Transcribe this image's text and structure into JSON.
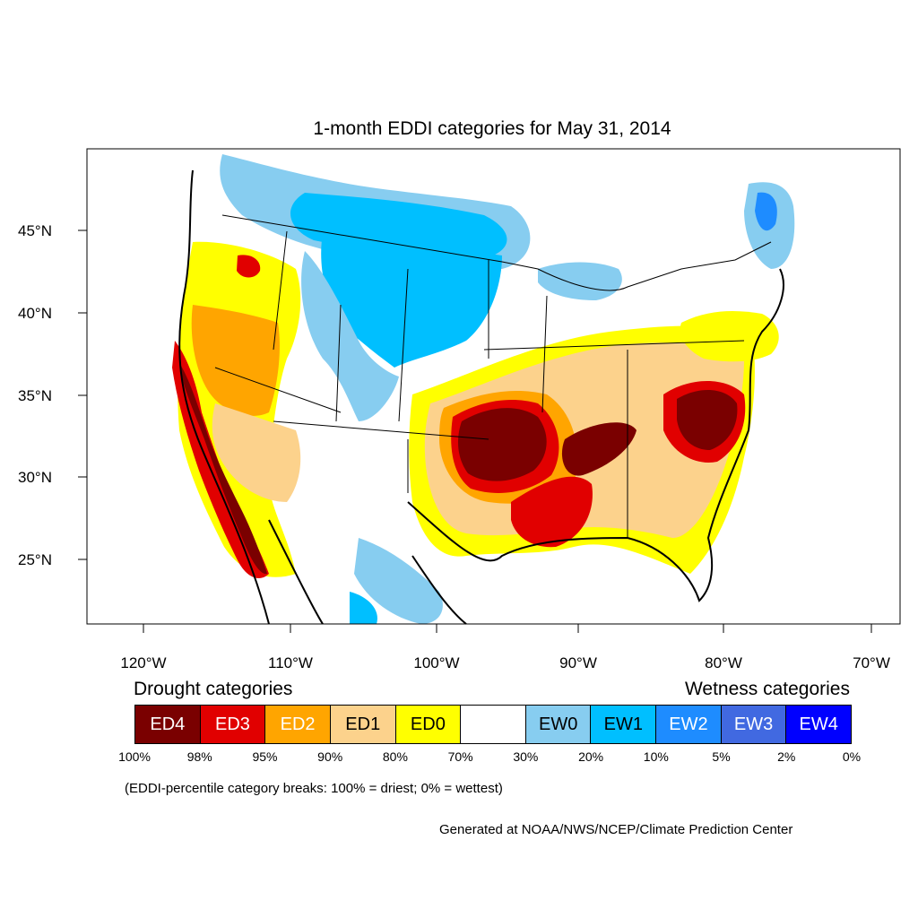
{
  "title": "1-month EDDI categories for May 31, 2014",
  "map": {
    "lat_labels": [
      "45°N",
      "40°N",
      "35°N",
      "30°N",
      "25°N"
    ],
    "lon_labels": [
      "120°W",
      "110°W",
      "100°W",
      "90°W",
      "80°W",
      "70°W"
    ]
  },
  "legend": {
    "drought_heading": "Drought categories",
    "wetness_heading": "Wetness categories",
    "categories": [
      {
        "label": "ED4",
        "color": "#7a0000",
        "text_color": "#ffffff"
      },
      {
        "label": "ED3",
        "color": "#e10000",
        "text_color": "#ffffff"
      },
      {
        "label": "ED2",
        "color": "#ffa500",
        "text_color": "#ffffff"
      },
      {
        "label": "ED1",
        "color": "#fcd28c",
        "text_color": "#000000"
      },
      {
        "label": "ED0",
        "color": "#ffff00",
        "text_color": "#000000"
      },
      {
        "label": "",
        "color": "#ffffff",
        "text_color": "#000000"
      },
      {
        "label": "EW0",
        "color": "#87cdf0",
        "text_color": "#000000"
      },
      {
        "label": "EW1",
        "color": "#00bfff",
        "text_color": "#000000"
      },
      {
        "label": "EW2",
        "color": "#1e8cff",
        "text_color": "#ffffff"
      },
      {
        "label": "EW3",
        "color": "#4169e1",
        "text_color": "#ffffff"
      },
      {
        "label": "EW4",
        "color": "#0000ff",
        "text_color": "#ffffff"
      }
    ],
    "breaks": [
      "100%",
      "98%",
      "95%",
      "90%",
      "80%",
      "70%",
      "30%",
      "20%",
      "10%",
      "5%",
      "2%",
      "0%"
    ],
    "note": "(EDDI-percentile category breaks: 100% = driest; 0% = wettest)"
  },
  "credit": "Generated at NOAA/NWS/NCEP/Climate Prediction Center"
}
